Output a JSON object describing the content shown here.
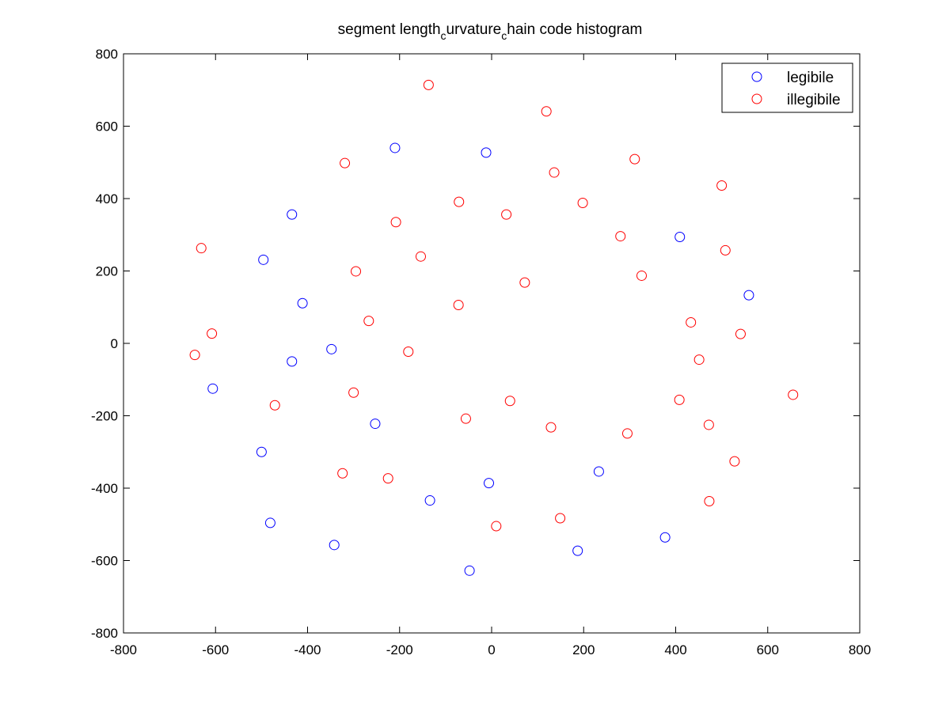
{
  "chart_data": {
    "type": "scatter",
    "title_parts": [
      "segment length",
      "c",
      "urvature",
      "c",
      "hain code histogram"
    ],
    "xlabel": "",
    "ylabel": "",
    "xlim": [
      -800,
      800
    ],
    "ylim": [
      -800,
      800
    ],
    "xticks": [
      -800,
      -600,
      -400,
      -200,
      0,
      200,
      400,
      600,
      800
    ],
    "yticks": [
      -800,
      -600,
      -400,
      -200,
      0,
      200,
      400,
      600,
      800
    ],
    "grid": false,
    "legend": "top-right",
    "marker": "circle-open",
    "series": [
      {
        "name": "legibile",
        "color": "#0000ff",
        "points": [
          [
            -210,
            540
          ],
          [
            -12,
            527
          ],
          [
            -434,
            356
          ],
          [
            -496,
            231
          ],
          [
            -411,
            111
          ],
          [
            -348,
            -16
          ],
          [
            -434,
            -50
          ],
          [
            -606,
            -125
          ],
          [
            -253,
            -222
          ],
          [
            -500,
            -300
          ],
          [
            -481,
            -496
          ],
          [
            -342,
            -557
          ],
          [
            -134,
            -434
          ],
          [
            -6,
            -386
          ],
          [
            -48,
            -628
          ],
          [
            233,
            -354
          ],
          [
            187,
            -573
          ],
          [
            377,
            -536
          ],
          [
            409,
            294
          ],
          [
            559,
            133
          ]
        ]
      },
      {
        "name": "illegibile",
        "color": "#ff0000",
        "points": [
          [
            -137,
            714
          ],
          [
            119,
            641
          ],
          [
            -319,
            498
          ],
          [
            136,
            472
          ],
          [
            311,
            509
          ],
          [
            500,
            436
          ],
          [
            -71,
            391
          ],
          [
            32,
            356
          ],
          [
            198,
            388
          ],
          [
            -208,
            335
          ],
          [
            -631,
            263
          ],
          [
            -154,
            240
          ],
          [
            280,
            296
          ],
          [
            508,
            257
          ],
          [
            -295,
            199
          ],
          [
            72,
            168
          ],
          [
            326,
            187
          ],
          [
            -72,
            106
          ],
          [
            -267,
            62
          ],
          [
            -608,
            27
          ],
          [
            -645,
            -32
          ],
          [
            -181,
            -23
          ],
          [
            433,
            58
          ],
          [
            541,
            26
          ],
          [
            451,
            -45
          ],
          [
            -300,
            -136
          ],
          [
            -471,
            -171
          ],
          [
            -56,
            -208
          ],
          [
            40,
            -159
          ],
          [
            129,
            -232
          ],
          [
            295,
            -249
          ],
          [
            408,
            -156
          ],
          [
            472,
            -225
          ],
          [
            655,
            -142
          ],
          [
            -324,
            -359
          ],
          [
            -225,
            -373
          ],
          [
            528,
            -326
          ],
          [
            10,
            -505
          ],
          [
            149,
            -483
          ],
          [
            473,
            -436
          ]
        ]
      }
    ]
  }
}
